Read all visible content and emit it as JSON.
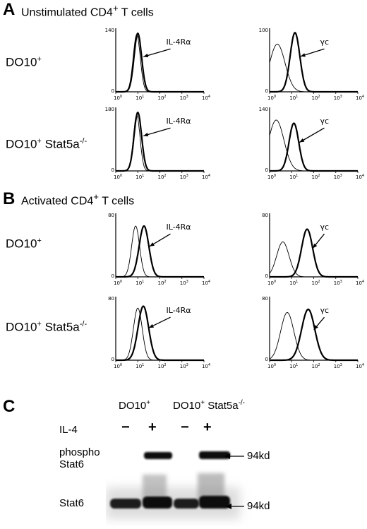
{
  "figure": {
    "panels": [
      {
        "letter": "A",
        "title_base": "Unstimulated CD4",
        "title_sup": "+",
        "title_tail": " T cells",
        "rows": [
          {
            "label_base": "DO10",
            "label_sup": "+",
            "label_mid": "",
            "label_sup2": "",
            "plots": [
              {
                "marker": "IL-4Rα",
                "ymax": "140",
                "ymid": "",
                "control_mu": 0.95,
                "control_sd": 0.16,
                "stain_mu": 1.0,
                "stain_sd": 0.17,
                "control_h": 0.9,
                "stain_h": 0.92
              },
              {
                "marker": "γc",
                "ymax": "100",
                "ymid": "",
                "control_mu": 0.35,
                "control_sd": 0.35,
                "stain_mu": 1.15,
                "stain_sd": 0.22,
                "control_h": 0.75,
                "stain_h": 0.93
              }
            ]
          },
          {
            "label_base": "DO10",
            "label_sup": "+",
            "label_mid": " Stat5a",
            "label_sup2": "-/-",
            "plots": [
              {
                "marker": "IL-4Rα",
                "ymax": "180",
                "ymid": "",
                "control_mu": 0.95,
                "control_sd": 0.15,
                "stain_mu": 1.0,
                "stain_sd": 0.17,
                "control_h": 0.88,
                "stain_h": 0.92
              },
              {
                "marker": "γc",
                "ymax": "140",
                "ymid": "",
                "control_mu": 0.3,
                "control_sd": 0.35,
                "stain_mu": 1.1,
                "stain_sd": 0.22,
                "control_h": 0.8,
                "stain_h": 0.75
              }
            ]
          }
        ]
      },
      {
        "letter": "B",
        "title_base": "Activated CD4",
        "title_sup": "+",
        "title_tail": " T cells",
        "rows": [
          {
            "label_base": "DO10",
            "label_sup": "+",
            "label_mid": "",
            "label_sup2": "",
            "plots": [
              {
                "marker": "IL-4Rα",
                "ymax": "80",
                "ymid": "",
                "control_mu": 0.9,
                "control_sd": 0.18,
                "stain_mu": 1.28,
                "stain_sd": 0.22,
                "control_h": 0.8,
                "stain_h": 0.8
              },
              {
                "marker": "γc",
                "ymax": "80",
                "ymid": "",
                "control_mu": 0.6,
                "control_sd": 0.28,
                "stain_mu": 1.7,
                "stain_sd": 0.25,
                "control_h": 0.55,
                "stain_h": 0.75
              }
            ]
          },
          {
            "label_base": "DO10",
            "label_sup": "+",
            "label_mid": " Stat5a",
            "label_sup2": "-/-",
            "plots": [
              {
                "marker": "IL-4Rα",
                "ymax": "80",
                "ymid": "",
                "control_mu": 1.0,
                "control_sd": 0.2,
                "stain_mu": 1.25,
                "stain_sd": 0.24,
                "control_h": 0.82,
                "stain_h": 0.85
              },
              {
                "marker": "γc",
                "ymax": "80",
                "ymid": "",
                "control_mu": 0.8,
                "control_sd": 0.3,
                "stain_mu": 1.75,
                "stain_sd": 0.3,
                "control_h": 0.75,
                "stain_h": 0.8
              }
            ]
          }
        ]
      }
    ],
    "x_ticks": [
      "10",
      "10",
      "10",
      "10",
      "10"
    ],
    "x_exps": [
      "0",
      "1",
      "2",
      "3",
      "4"
    ],
    "y_min": "0",
    "panel_c": {
      "letter": "C",
      "groups": [
        {
          "base": "DO10",
          "sup": "+",
          "mid": "",
          "sup2": ""
        },
        {
          "base": "DO10",
          "sup": "+",
          "mid": " Stat5a",
          "sup2": "-/-"
        }
      ],
      "treatment_label": "IL-4",
      "lanes": [
        "−",
        "+",
        "−",
        "+"
      ],
      "rows": [
        {
          "label_line1": "phospho",
          "label_line2": "Stat6",
          "size": "94kd"
        },
        {
          "label_line1": "Stat6",
          "label_line2": "",
          "size": "94kd"
        }
      ]
    }
  }
}
